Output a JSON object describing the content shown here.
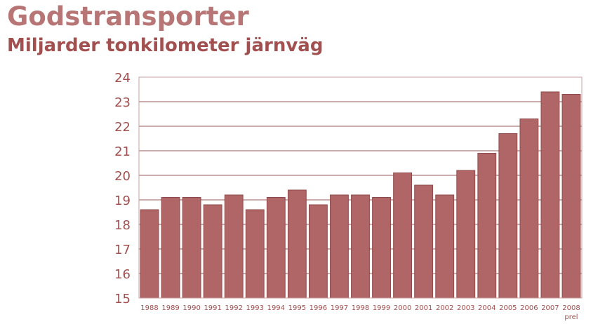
{
  "chart_data": {
    "type": "bar",
    "title": "Godstransporter",
    "subtitle": "Miljarder tonkilometer järnväg",
    "categories": [
      "1988",
      "1989",
      "1990",
      "1991",
      "1992",
      "1993",
      "1994",
      "1995",
      "1996",
      "1997",
      "1998",
      "1999",
      "2000",
      "2001",
      "2002",
      "2003",
      "2004",
      "2005",
      "2006",
      "2007",
      "2008"
    ],
    "category_sublabels": {
      "2008": "prel"
    },
    "values": [
      18.6,
      19.1,
      19.1,
      18.8,
      19.2,
      18.6,
      19.1,
      19.4,
      18.8,
      19.2,
      19.2,
      19.1,
      20.1,
      19.6,
      19.2,
      20.2,
      20.9,
      21.7,
      22.3,
      23.4,
      23.3
    ],
    "yticks": [
      15,
      16,
      17,
      18,
      19,
      20,
      21,
      22,
      23,
      24
    ],
    "ylim": [
      15,
      24
    ],
    "grid": true,
    "colors": {
      "bar": "#b06666",
      "bar_edge": "#8e4a4a",
      "grid": "#9a5a5a",
      "axis_text": "#a24f4f"
    }
  }
}
